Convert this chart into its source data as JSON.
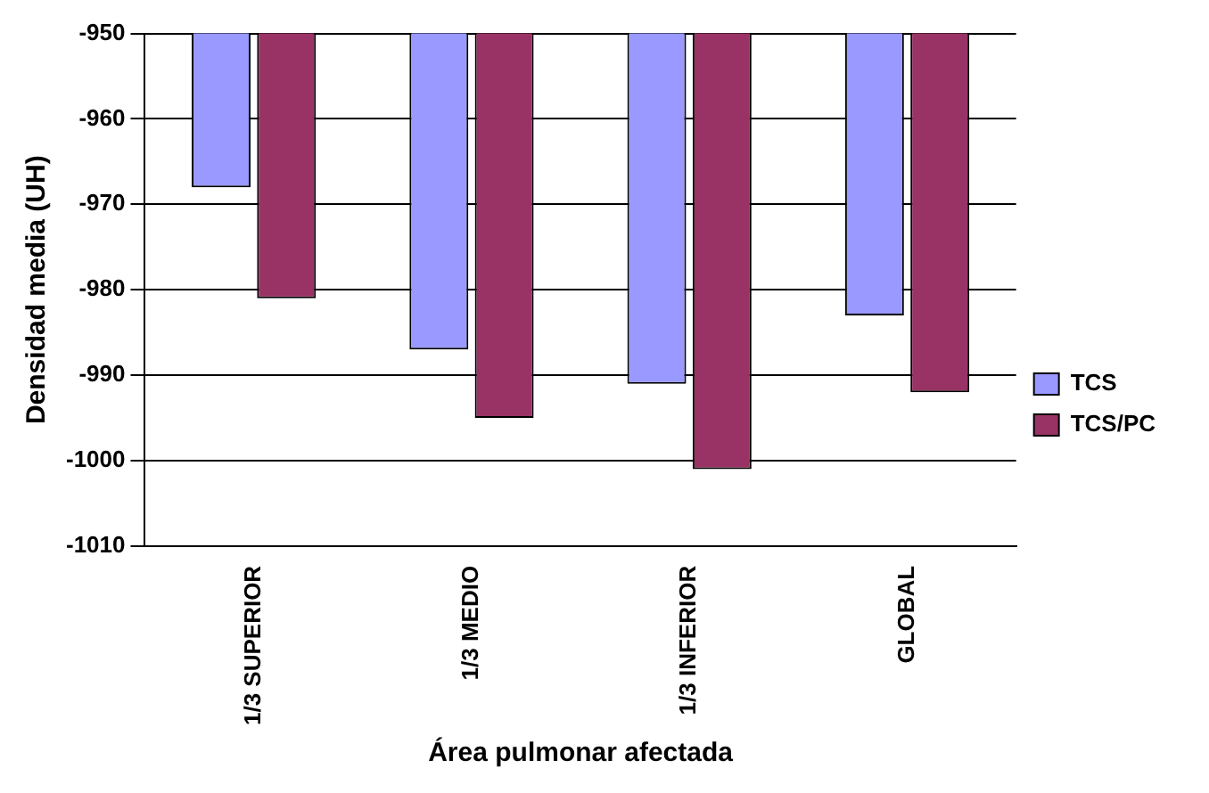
{
  "chart_data": {
    "type": "bar",
    "xlabel": "Área pulmonar afectada",
    "ylabel": "Densidad media (UH)",
    "categories": [
      "1/3 SUPERIOR",
      "1/3 MEDIO",
      "1/3 INFERIOR",
      "GLOBAL"
    ],
    "series": [
      {
        "name": "TCS",
        "color": "#9999ff",
        "values": [
          -968,
          -987,
          -991,
          -983
        ]
      },
      {
        "name": "TCS/PC",
        "color": "#993366",
        "values": [
          -981,
          -995,
          -1001,
          -992
        ]
      }
    ],
    "ylim": [
      -1010,
      -950
    ],
    "yticks": [
      -1010,
      -1000,
      -990,
      -980,
      -970,
      -960,
      -950
    ],
    "grid": "y",
    "legend": "right"
  }
}
